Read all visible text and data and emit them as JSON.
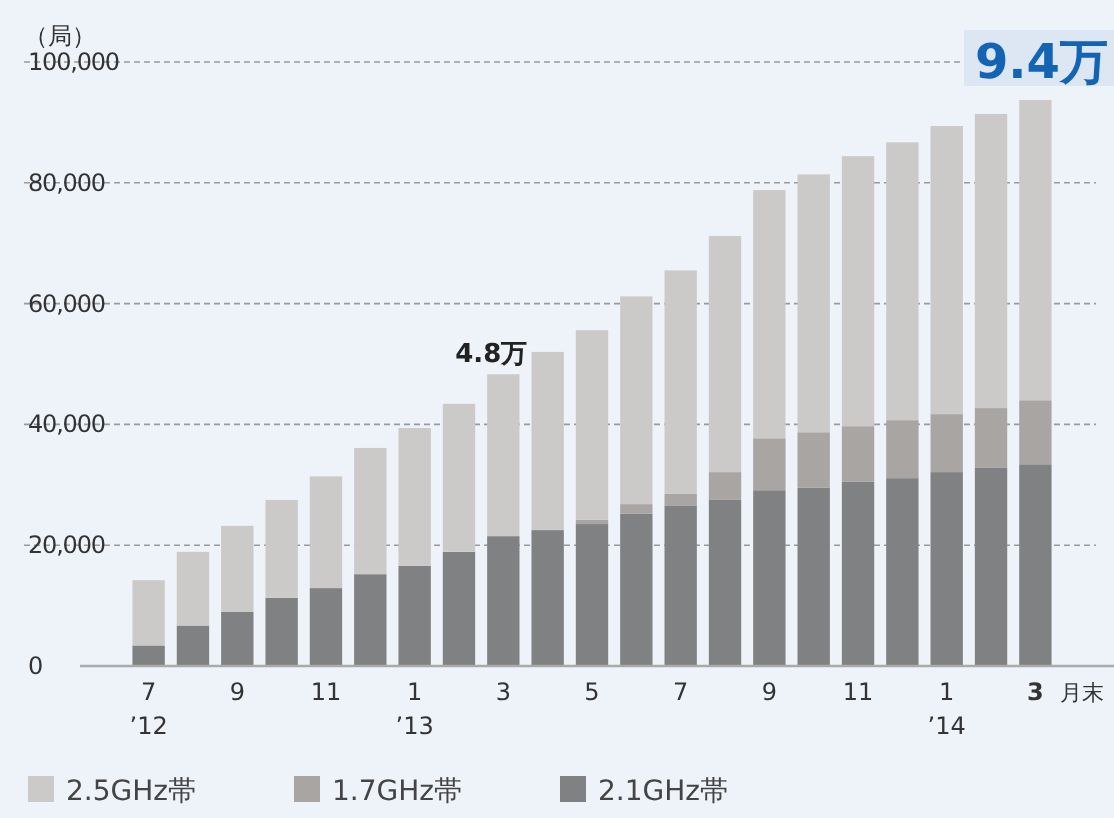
{
  "chart_data": {
    "type": "bar",
    "stacked": true,
    "ylabel": "（局）",
    "xlabel": "月末",
    "categories": [
      "7\n’12",
      null,
      "9",
      null,
      "11",
      null,
      "1\n’13",
      null,
      "3",
      null,
      "5",
      null,
      "7",
      null,
      "9",
      null,
      "11",
      null,
      "1\n’14",
      null,
      "3"
    ],
    "series": [
      {
        "name": "2.1GHz帯",
        "color": "#808183",
        "values": [
          3400,
          6700,
          9000,
          11300,
          12900,
          15200,
          16600,
          18900,
          21500,
          22500,
          23500,
          25200,
          26500,
          27500,
          29100,
          29500,
          30500,
          31100,
          32100,
          32800,
          33400
        ]
      },
      {
        "name": "1.7GHz帯",
        "color": "#a8a5a3",
        "values": [
          0,
          0,
          0,
          0,
          0,
          0,
          0,
          0,
          0,
          0,
          700,
          1600,
          2000,
          4600,
          8600,
          9200,
          9200,
          9600,
          9600,
          9900,
          10600
        ]
      },
      {
        "name": "2.5GHz帯",
        "color": "#cbcac8",
        "values": [
          10800,
          12200,
          14200,
          16200,
          18500,
          20900,
          22800,
          24500,
          26800,
          29500,
          31400,
          34400,
          37000,
          39100,
          41100,
          42700,
          44700,
          46000,
          47700,
          48700,
          49700
        ]
      }
    ],
    "annotations": [
      {
        "text": "4.8万",
        "x": "3",
        "y": 48000
      },
      "9.4万"
    ],
    "ylim": [
      0,
      100000
    ],
    "yticks": [
      0,
      {
        "value": 20000,
        "label": "20,000"
      },
      {
        "value": 40000,
        "label": "40,000"
      },
      {
        "value": 60000,
        "label": "60,000"
      },
      {
        "value": 80000,
        "label": "80,000"
      },
      {
        "value": 100000,
        "label": "100,000"
      }
    ],
    "grid": "y",
    "legend": "bottom"
  }
}
